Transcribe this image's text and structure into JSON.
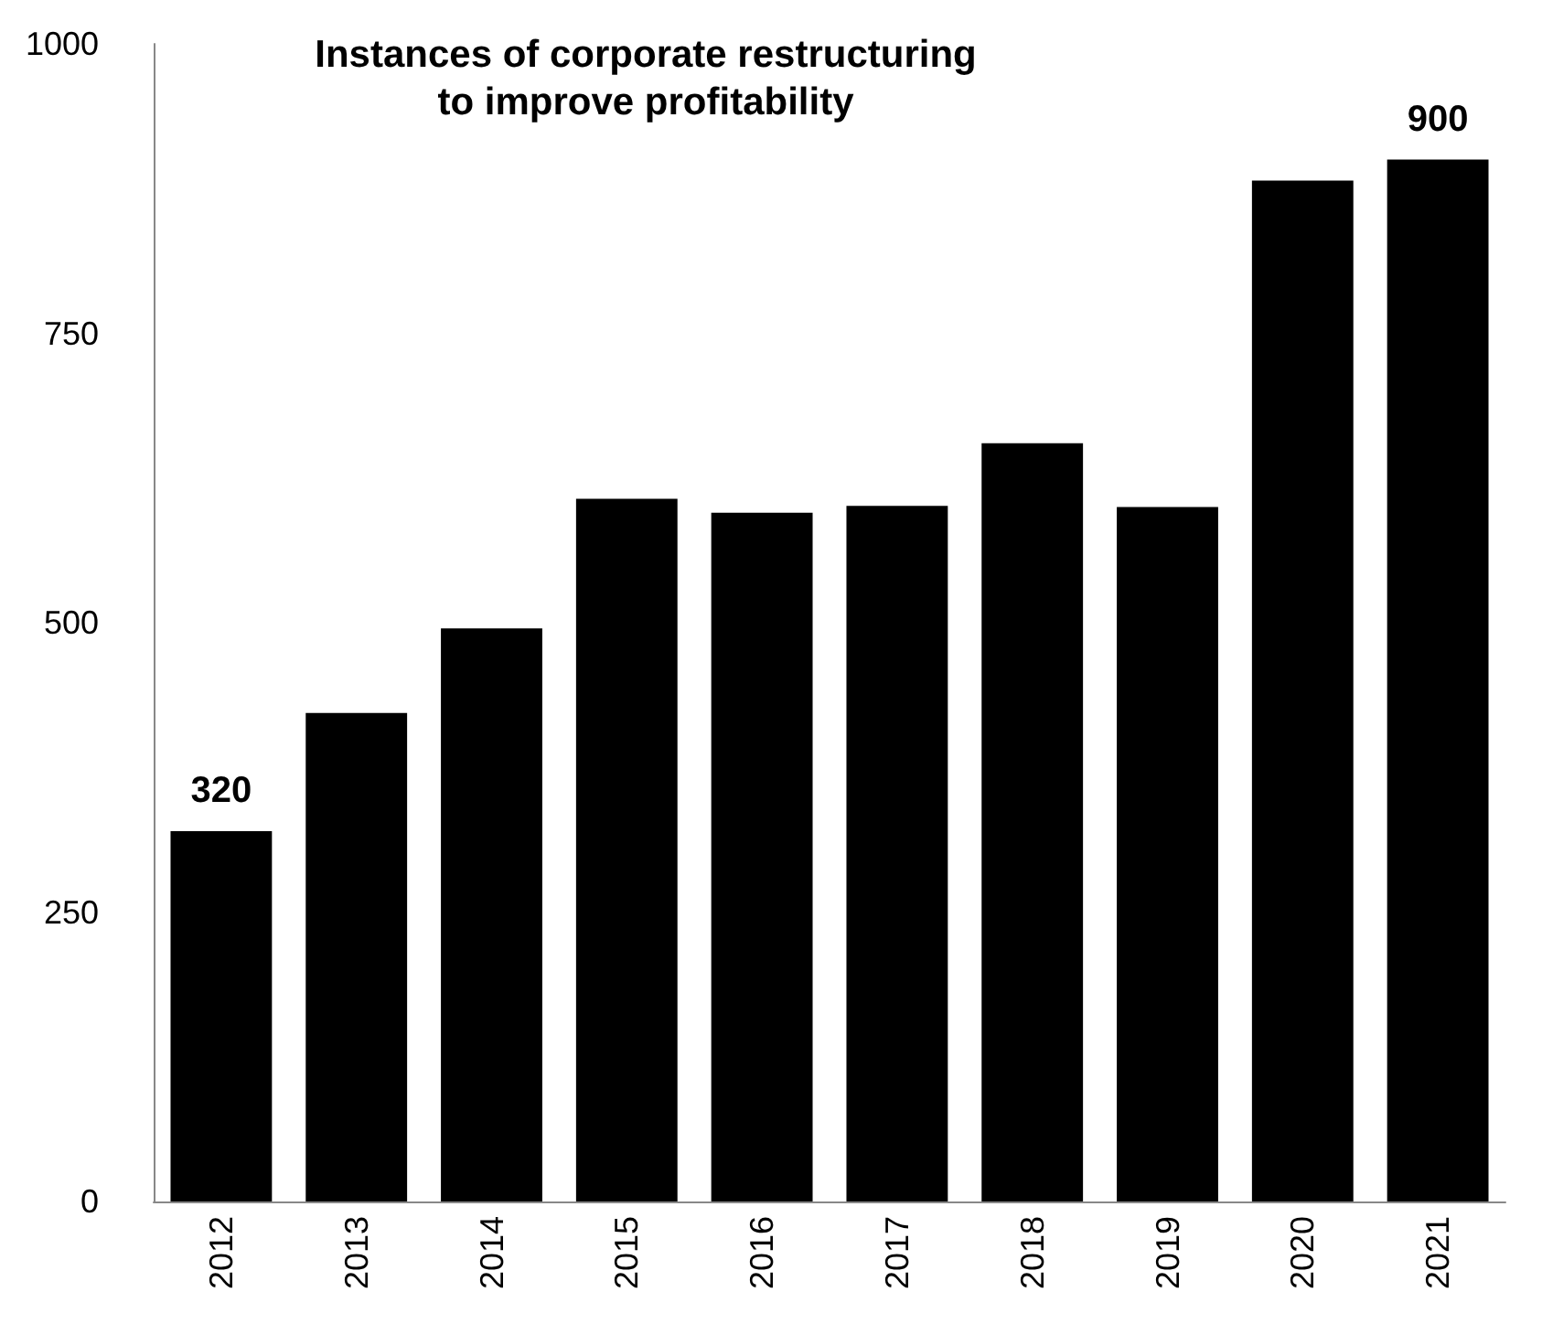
{
  "chart_data": {
    "type": "bar",
    "title": "Instances of corporate restructuring\nto improve profitability",
    "categories": [
      "2012",
      "2013",
      "2014",
      "2015",
      "2016",
      "2017",
      "2018",
      "2019",
      "2020",
      "2021"
    ],
    "values": [
      320,
      422,
      495,
      607,
      595,
      601,
      655,
      600,
      882,
      900
    ],
    "value_labels": [
      "320",
      null,
      null,
      null,
      null,
      null,
      null,
      null,
      null,
      "900"
    ],
    "color": "#000000",
    "ylim": [
      0,
      1000
    ],
    "yticks": [
      0,
      250,
      500,
      750,
      1000
    ],
    "grid": false
  }
}
